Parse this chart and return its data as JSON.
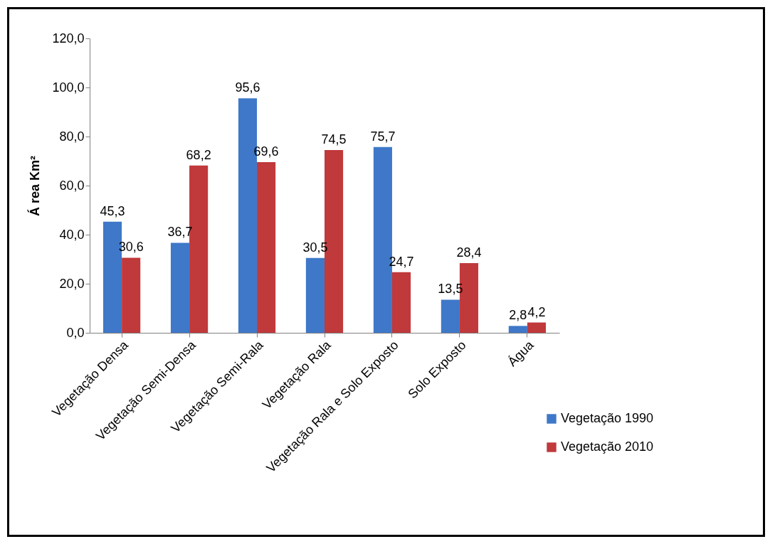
{
  "chart_data": {
    "type": "bar",
    "ylabel": "Á rea Km²",
    "categories": [
      "Vegetação Densa",
      "Vegetação Semi-Densa",
      "Vegetação Semi-Rala",
      "Vegetação Rala",
      "Vegetação Rala e Solo Exposto",
      "Solo Exposto",
      "Água"
    ],
    "series": [
      {
        "name": "Vegetação 1990",
        "color": "#3f78c8",
        "values": [
          45.3,
          36.7,
          95.6,
          30.5,
          75.7,
          13.5,
          2.8
        ],
        "value_labels": [
          "45,3",
          "36,7",
          "95,6",
          "30,5",
          "75,7",
          "13,5",
          "2,8"
        ]
      },
      {
        "name": "Vegetação 2010",
        "color": "#c0393b",
        "values": [
          30.6,
          68.2,
          69.6,
          74.5,
          24.7,
          28.4,
          4.2
        ],
        "value_labels": [
          "30,6",
          "68,2",
          "69,6",
          "74,5",
          "24,7",
          "28,4",
          "4,2"
        ]
      }
    ],
    "ylim": [
      0,
      120
    ],
    "yticks": [
      {
        "value": 0,
        "label": "0,0"
      },
      {
        "value": 20,
        "label": "20,0"
      },
      {
        "value": 40,
        "label": "40,0"
      },
      {
        "value": 60,
        "label": "60,0"
      },
      {
        "value": 80,
        "label": "80,0"
      },
      {
        "value": 100,
        "label": "100,0"
      },
      {
        "value": 120,
        "label": "120,0"
      }
    ],
    "grid": false,
    "legend": "bottom right"
  }
}
